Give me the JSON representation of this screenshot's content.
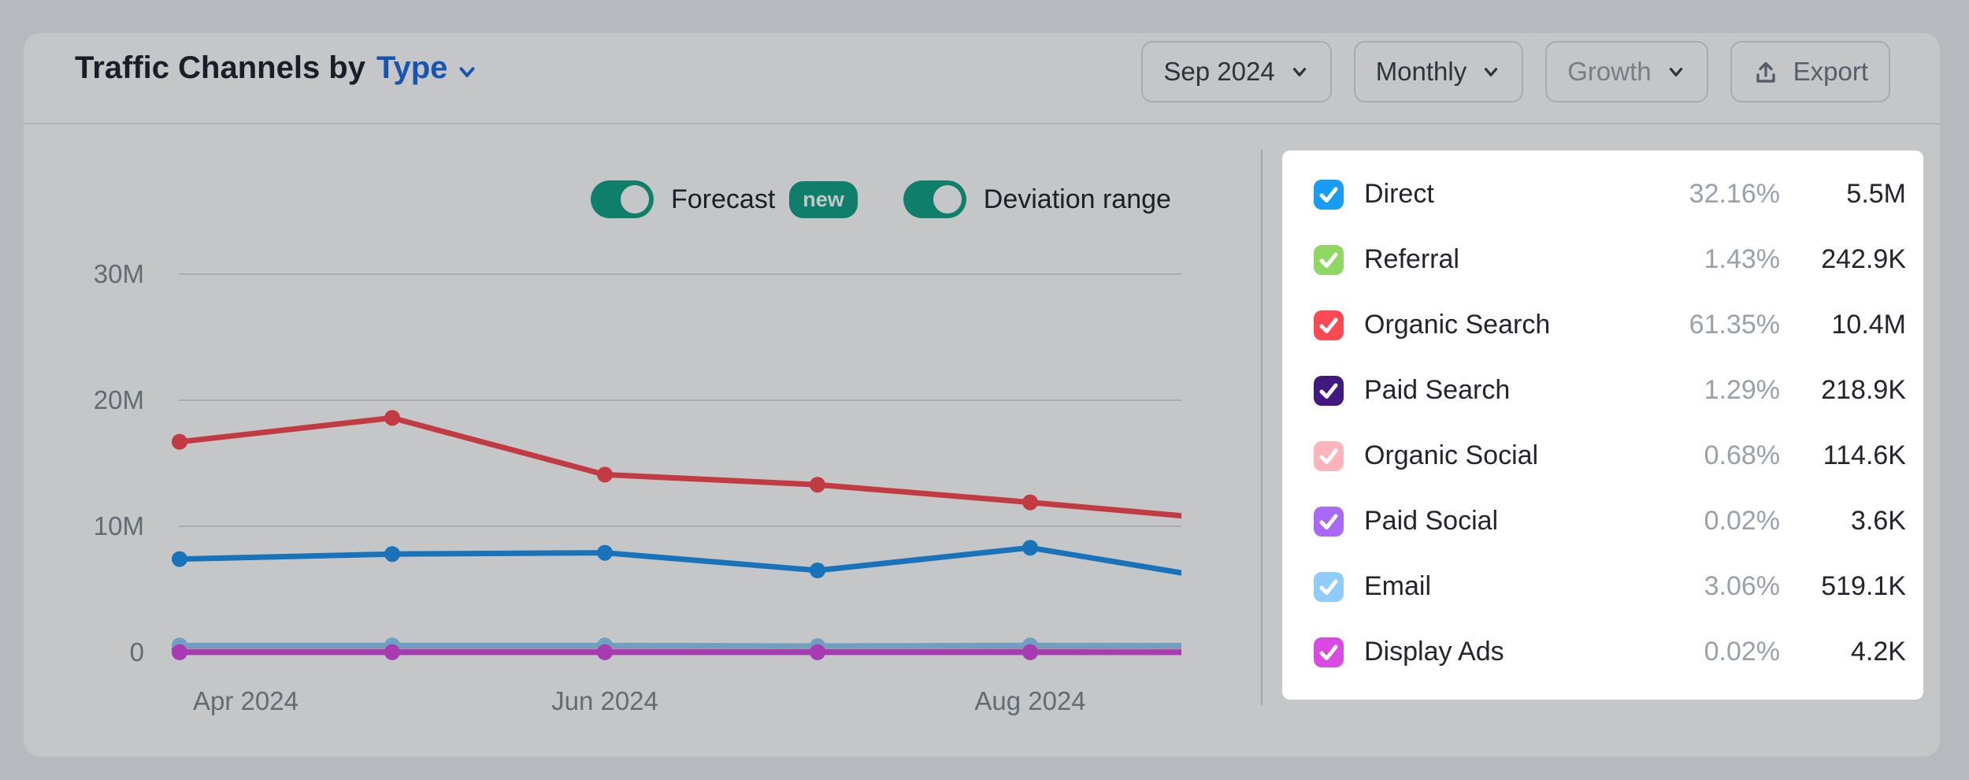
{
  "header": {
    "title_prefix": "Traffic Channels by",
    "title_link": "Type",
    "controls": {
      "date_range": "Sep 2024",
      "granularity": "Monthly",
      "metric": "Growth",
      "export_label": "Export"
    }
  },
  "toggles": {
    "forecast_label": "Forecast",
    "forecast_badge": "new",
    "forecast_on": true,
    "deviation_label": "Deviation range",
    "deviation_on": true
  },
  "legend": {
    "rows": [
      {
        "name": "Direct",
        "share": "32.16%",
        "visits": "5.5M",
        "color": "#189df2"
      },
      {
        "name": "Referral",
        "share": "1.43%",
        "visits": "242.9K",
        "color": "#8ed763"
      },
      {
        "name": "Organic Search",
        "share": "61.35%",
        "visits": "10.4M",
        "color": "#fb4a53"
      },
      {
        "name": "Paid Search",
        "share": "1.29%",
        "visits": "218.9K",
        "color": "#42197f"
      },
      {
        "name": "Organic Social",
        "share": "0.68%",
        "visits": "114.6K",
        "color": "#ffb3bb"
      },
      {
        "name": "Paid Social",
        "share": "0.02%",
        "visits": "3.6K",
        "color": "#a869f6"
      },
      {
        "name": "Email",
        "share": "3.06%",
        "visits": "519.1K",
        "color": "#8fccf9"
      },
      {
        "name": "Display Ads",
        "share": "0.02%",
        "visits": "4.2K",
        "color": "#d94ae3"
      }
    ]
  },
  "chart_data": {
    "type": "line",
    "title": "Traffic Channels by Type",
    "unit": "visits per month (millions)",
    "x": [
      "Apr 2024",
      "May 2024",
      "Jun 2024",
      "Jul 2024",
      "Aug 2024",
      "Sep 2024"
    ],
    "x_ticks": [
      {
        "label": "Apr 2024",
        "index": 0
      },
      {
        "label": "Jun 2024",
        "index": 2
      },
      {
        "label": "Aug 2024",
        "index": 4
      }
    ],
    "y_ticks": [
      {
        "label": "30M",
        "value": 30
      },
      {
        "label": "20M",
        "value": 20
      },
      {
        "label": "10M",
        "value": 10
      },
      {
        "label": "0",
        "value": 0
      }
    ],
    "ylim": [
      0,
      33
    ],
    "grid": true,
    "grid_color": "#dbdee2",
    "legend_position": "right",
    "series": [
      {
        "name": "Referral",
        "color": "#8ed763",
        "values": [
          0.25,
          0.25,
          0.25,
          0.24,
          0.25,
          0.24
        ]
      },
      {
        "name": "Paid Search",
        "color": "#42197f",
        "values": [
          0.22,
          0.22,
          0.22,
          0.22,
          0.22,
          0.22
        ]
      },
      {
        "name": "Organic Social",
        "color": "#ffb3bb",
        "values": [
          0.12,
          0.12,
          0.12,
          0.11,
          0.11,
          0.11
        ]
      },
      {
        "name": "Paid Social",
        "color": "#a869f6",
        "values": [
          0.004,
          0.004,
          0.004,
          0.004,
          0.004,
          0.004
        ]
      },
      {
        "name": "Email",
        "color": "#8fccf9",
        "values": [
          0.55,
          0.55,
          0.55,
          0.5,
          0.55,
          0.52
        ]
      },
      {
        "name": "Display Ads",
        "color": "#d94ae3",
        "values": [
          0.02,
          0.02,
          0.02,
          0.02,
          0.02,
          0.004
        ]
      },
      {
        "name": "Direct",
        "color": "#1f93f0",
        "values": [
          7.4,
          7.8,
          7.9,
          6.5,
          8.3,
          5.5
        ]
      },
      {
        "name": "Organic Search",
        "color": "#fb4a53",
        "values": [
          16.7,
          18.6,
          14.1,
          13.3,
          11.9,
          10.4
        ]
      }
    ]
  }
}
